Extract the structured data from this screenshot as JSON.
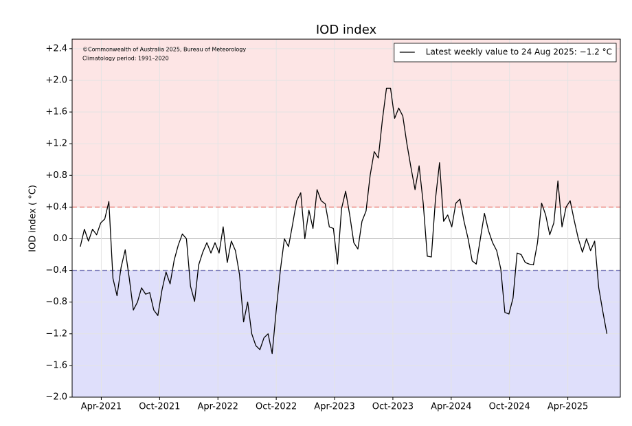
{
  "chart_data": {
    "type": "line",
    "title": "IOD index",
    "y_label": "IOD index ( °C)",
    "notes": [
      "©Commonwealth of Australia 2025, Bureau of Meteorology",
      "Climatology period: 1991–2020"
    ],
    "legend": "upper right",
    "grid": true,
    "xlim": [
      2021.0,
      2025.7
    ],
    "ylim": [
      -2.0,
      2.52
    ],
    "xticks": [
      {
        "value": 2021.25,
        "label": "Apr-2021"
      },
      {
        "value": 2021.75,
        "label": "Oct-2021"
      },
      {
        "value": 2022.25,
        "label": "Apr-2022"
      },
      {
        "value": 2022.75,
        "label": "Oct-2022"
      },
      {
        "value": 2023.25,
        "label": "Apr-2023"
      },
      {
        "value": 2023.75,
        "label": "Oct-2023"
      },
      {
        "value": 2024.25,
        "label": "Apr-2024"
      },
      {
        "value": 2024.75,
        "label": "Oct-2024"
      },
      {
        "value": 2025.25,
        "label": "Apr-2025"
      }
    ],
    "yticks": [
      {
        "value": 2.4,
        "label": "+2.4"
      },
      {
        "value": 2.0,
        "label": "+2.0"
      },
      {
        "value": 1.6,
        "label": "+1.6"
      },
      {
        "value": 1.2,
        "label": "+1.2"
      },
      {
        "value": 0.8,
        "label": "+0.8"
      },
      {
        "value": 0.4,
        "label": "+0.4"
      },
      {
        "value": 0,
        "label": "0.0"
      },
      {
        "value": -0.4,
        "label": "−0.4"
      },
      {
        "value": -0.8,
        "label": "−0.8"
      },
      {
        "value": -1.2,
        "label": "−1.2"
      },
      {
        "value": -1.6,
        "label": "−1.6"
      },
      {
        "value": -2.0,
        "label": "−2.0"
      }
    ],
    "thresholds": [
      {
        "value": 0.4,
        "color": "#e8736b",
        "fill": "#fde5e5",
        "side": "above"
      },
      {
        "value": -0.4,
        "color": "#7878b8",
        "fill": "#dfdffb",
        "side": "below"
      }
    ],
    "x": [
      2021.07,
      2021.105,
      2021.14,
      2021.175,
      2021.21,
      2021.245,
      2021.28,
      2021.315,
      2021.35,
      2021.385,
      2021.42,
      2021.455,
      2021.49,
      2021.525,
      2021.56,
      2021.595,
      2021.63,
      2021.665,
      2021.7,
      2021.735,
      2021.77,
      2021.805,
      2021.84,
      2021.875,
      2021.91,
      2021.945,
      2021.98,
      2022.015,
      2022.05,
      2022.085,
      2022.12,
      2022.155,
      2022.19,
      2022.225,
      2022.26,
      2022.295,
      2022.33,
      2022.365,
      2022.4,
      2022.435,
      2022.47,
      2022.505,
      2022.54,
      2022.575,
      2022.61,
      2022.645,
      2022.68,
      2022.715,
      2022.75,
      2022.785,
      2022.82,
      2022.855,
      2022.89,
      2022.925,
      2022.96,
      2022.995,
      2023.03,
      2023.065,
      2023.1,
      2023.135,
      2023.17,
      2023.205,
      2023.24,
      2023.275,
      2023.31,
      2023.345,
      2023.38,
      2023.415,
      2023.45,
      2023.485,
      2023.52,
      2023.555,
      2023.59,
      2023.625,
      2023.66,
      2023.695,
      2023.73,
      2023.765,
      2023.8,
      2023.835,
      2023.87,
      2023.905,
      2023.94,
      2023.975,
      2024.01,
      2024.045,
      2024.08,
      2024.115,
      2024.15,
      2024.185,
      2024.22,
      2024.255,
      2024.29,
      2024.325,
      2024.36,
      2024.395,
      2024.43,
      2024.465,
      2024.5,
      2024.535,
      2024.57,
      2024.605,
      2024.64,
      2024.675,
      2024.71,
      2024.745,
      2024.78,
      2024.815,
      2024.85,
      2024.885,
      2024.92,
      2024.955,
      2024.99,
      2025.025,
      2025.06,
      2025.095,
      2025.13,
      2025.165,
      2025.2,
      2025.235,
      2025.27,
      2025.305,
      2025.34,
      2025.375,
      2025.41,
      2025.445,
      2025.48,
      2025.515,
      2025.55,
      2025.585
    ],
    "series": [
      {
        "name": "Latest weekly value to 24 Aug 2025: −1.2 °C",
        "color": "#000000",
        "values": [
          -0.1,
          0.12,
          -0.03,
          0.12,
          0.05,
          0.2,
          0.25,
          0.47,
          -0.5,
          -0.72,
          -0.36,
          -0.14,
          -0.5,
          -0.9,
          -0.8,
          -0.62,
          -0.7,
          -0.68,
          -0.9,
          -0.97,
          -0.65,
          -0.42,
          -0.57,
          -0.27,
          -0.08,
          0.06,
          0.0,
          -0.6,
          -0.79,
          -0.33,
          -0.17,
          -0.05,
          -0.18,
          -0.05,
          -0.18,
          0.15,
          -0.3,
          -0.03,
          -0.15,
          -0.45,
          -1.05,
          -0.8,
          -1.2,
          -1.35,
          -1.4,
          -1.25,
          -1.2,
          -1.45,
          -0.9,
          -0.4,
          0.0,
          -0.1,
          0.18,
          0.48,
          0.58,
          0.0,
          0.36,
          0.13,
          0.62,
          0.48,
          0.44,
          0.15,
          0.13,
          -0.32,
          0.38,
          0.6,
          0.3,
          -0.05,
          -0.13,
          0.22,
          0.35,
          0.8,
          1.1,
          1.02,
          1.5,
          1.9,
          1.9,
          1.52,
          1.65,
          1.55,
          1.2,
          0.9,
          0.62,
          0.92,
          0.45,
          -0.22,
          -0.23,
          0.5,
          0.96,
          0.22,
          0.3,
          0.15,
          0.45,
          0.5,
          0.22,
          0.0,
          -0.28,
          -0.32,
          0.0,
          0.32,
          0.1,
          -0.05,
          -0.15,
          -0.38,
          -0.93,
          -0.95,
          -0.75,
          -0.18,
          -0.2,
          -0.3,
          -0.32,
          -0.33,
          -0.05,
          0.45,
          0.3,
          0.05,
          0.2,
          0.73,
          0.15,
          0.4,
          0.48,
          0.23,
          0.0,
          -0.17,
          0.0,
          -0.15,
          -0.03,
          -0.62,
          -0.92,
          -1.2
        ]
      }
    ]
  }
}
